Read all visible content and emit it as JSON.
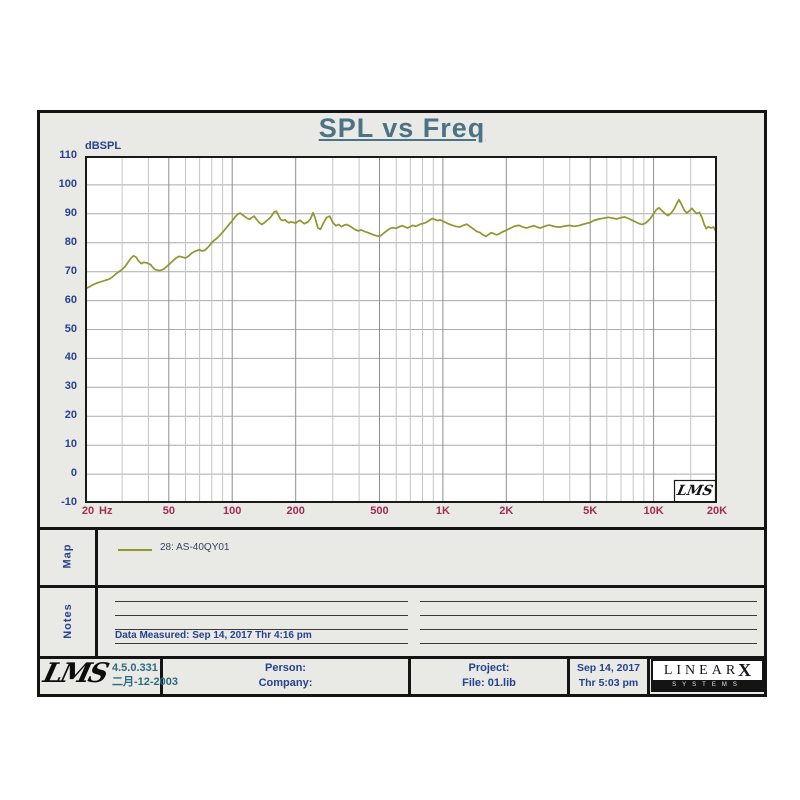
{
  "title": "SPL vs Freq",
  "plot": {
    "y_unit_label": "dBSPL",
    "x_unit_label": "Hz",
    "watermark": "LMS"
  },
  "chart_data": {
    "type": "line",
    "title": "SPL vs Freq",
    "ylabel": "dBSPL",
    "x_unit": "Hz",
    "x_scale": "log",
    "xlim": [
      20,
      20000
    ],
    "ylim": [
      -10,
      110
    ],
    "grid": true,
    "y_ticks": [
      110,
      100,
      90,
      80,
      70,
      60,
      50,
      40,
      30,
      20,
      10,
      0,
      -10
    ],
    "x_ticks": [
      {
        "f": 20,
        "label": "20"
      },
      {
        "f": 50,
        "label": "50"
      },
      {
        "f": 100,
        "label": "100"
      },
      {
        "f": 200,
        "label": "200"
      },
      {
        "f": 500,
        "label": "500"
      },
      {
        "f": 1000,
        "label": "1K"
      },
      {
        "f": 2000,
        "label": "2K"
      },
      {
        "f": 5000,
        "label": "5K"
      },
      {
        "f": 10000,
        "label": "10K"
      },
      {
        "f": 20000,
        "label": "20K"
      }
    ],
    "x_minor_gridlines": [
      30,
      40,
      60,
      70,
      80,
      90,
      300,
      400,
      600,
      700,
      800,
      900,
      3000,
      4000,
      6000,
      7000,
      8000,
      9000,
      15000
    ],
    "series": [
      {
        "name": "28: AS-40QY01",
        "color": "#8f962e",
        "points": [
          [
            20,
            64
          ],
          [
            21,
            64.8
          ],
          [
            22,
            65.6
          ],
          [
            23,
            66.2
          ],
          [
            24,
            66.6
          ],
          [
            25,
            67
          ],
          [
            26,
            67.4
          ],
          [
            27,
            68.2
          ],
          [
            28,
            69.2
          ],
          [
            29,
            70
          ],
          [
            30,
            70.8
          ],
          [
            31,
            71.8
          ],
          [
            32,
            73.2
          ],
          [
            33,
            74.6
          ],
          [
            34,
            75.5
          ],
          [
            35,
            75
          ],
          [
            36,
            73.6
          ],
          [
            37,
            72.8
          ],
          [
            38,
            73.2
          ],
          [
            39,
            73.1
          ],
          [
            40,
            72.8
          ],
          [
            41,
            72.4
          ],
          [
            42,
            71.4
          ],
          [
            43,
            70.8
          ],
          [
            44,
            70.5
          ],
          [
            45,
            70.4
          ],
          [
            46,
            70.5
          ],
          [
            47,
            70.8
          ],
          [
            48,
            71.3
          ],
          [
            50,
            72.4
          ],
          [
            52,
            73.6
          ],
          [
            54,
            74.7
          ],
          [
            56,
            75.3
          ],
          [
            58,
            75
          ],
          [
            60,
            74.7
          ],
          [
            62,
            75.4
          ],
          [
            64,
            76.3
          ],
          [
            66,
            76.9
          ],
          [
            68,
            77.3
          ],
          [
            70,
            77.6
          ],
          [
            72,
            77.1
          ],
          [
            74,
            77.4
          ],
          [
            76,
            78.1
          ],
          [
            78,
            79
          ],
          [
            80,
            80
          ],
          [
            82,
            80.8
          ],
          [
            84,
            81.4
          ],
          [
            86,
            82.1
          ],
          [
            88,
            82.9
          ],
          [
            90,
            83.6
          ],
          [
            93,
            84.9
          ],
          [
            96,
            86.1
          ],
          [
            100,
            87.6
          ],
          [
            103,
            88.9
          ],
          [
            106,
            89.8
          ],
          [
            109,
            90.3
          ],
          [
            112,
            89.6
          ],
          [
            115,
            89
          ],
          [
            118,
            88.4
          ],
          [
            121,
            88.1
          ],
          [
            124,
            88.7
          ],
          [
            127,
            89.2
          ],
          [
            130,
            88.2
          ],
          [
            134,
            87
          ],
          [
            138,
            86.3
          ],
          [
            142,
            86.9
          ],
          [
            146,
            87.7
          ],
          [
            150,
            88.3
          ],
          [
            154,
            89.4
          ],
          [
            158,
            90.6
          ],
          [
            162,
            90.9
          ],
          [
            166,
            89.4
          ],
          [
            170,
            88
          ],
          [
            174,
            87.7
          ],
          [
            178,
            88
          ],
          [
            182,
            87.3
          ],
          [
            186,
            86.9
          ],
          [
            190,
            87.2
          ],
          [
            195,
            87
          ],
          [
            200,
            86.8
          ],
          [
            205,
            87.4
          ],
          [
            210,
            87.8
          ],
          [
            215,
            87.1
          ],
          [
            220,
            86.6
          ],
          [
            228,
            87.1
          ],
          [
            235,
            88.2
          ],
          [
            242,
            90.4
          ],
          [
            248,
            88.4
          ],
          [
            255,
            85.1
          ],
          [
            262,
            84.7
          ],
          [
            270,
            86.6
          ],
          [
            280,
            88.7
          ],
          [
            290,
            89.2
          ],
          [
            300,
            87
          ],
          [
            310,
            85.9
          ],
          [
            320,
            86.3
          ],
          [
            330,
            85.6
          ],
          [
            340,
            86.1
          ],
          [
            350,
            86.3
          ],
          [
            365,
            85.6
          ],
          [
            380,
            84.7
          ],
          [
            395,
            84.1
          ],
          [
            410,
            84.4
          ],
          [
            425,
            83.9
          ],
          [
            440,
            83.5
          ],
          [
            455,
            83.1
          ],
          [
            470,
            82.7
          ],
          [
            485,
            82.4
          ],
          [
            500,
            82.2
          ],
          [
            515,
            82.9
          ],
          [
            530,
            83.6
          ],
          [
            545,
            84.3
          ],
          [
            560,
            84.9
          ],
          [
            580,
            85.2
          ],
          [
            600,
            85
          ],
          [
            620,
            85.5
          ],
          [
            640,
            85.9
          ],
          [
            660,
            85.5
          ],
          [
            680,
            85.1
          ],
          [
            700,
            85.6
          ],
          [
            720,
            86
          ],
          [
            740,
            85.7
          ],
          [
            760,
            86
          ],
          [
            780,
            86.4
          ],
          [
            800,
            86.6
          ],
          [
            830,
            87
          ],
          [
            860,
            87.7
          ],
          [
            890,
            88.4
          ],
          [
            910,
            88.1
          ],
          [
            940,
            87.7
          ],
          [
            970,
            87.9
          ],
          [
            1000,
            87.5
          ],
          [
            1030,
            87
          ],
          [
            1060,
            86.6
          ],
          [
            1100,
            86.1
          ],
          [
            1150,
            85.7
          ],
          [
            1200,
            85.4
          ],
          [
            1250,
            86
          ],
          [
            1300,
            86.4
          ],
          [
            1350,
            85.5
          ],
          [
            1400,
            84.7
          ],
          [
            1450,
            83.9
          ],
          [
            1500,
            83.5
          ],
          [
            1550,
            82.7
          ],
          [
            1600,
            82.2
          ],
          [
            1650,
            82.9
          ],
          [
            1700,
            83.5
          ],
          [
            1750,
            83.1
          ],
          [
            1800,
            82.7
          ],
          [
            1850,
            83.1
          ],
          [
            1900,
            83.6
          ],
          [
            2000,
            84.3
          ],
          [
            2100,
            85.1
          ],
          [
            2200,
            85.8
          ],
          [
            2300,
            86
          ],
          [
            2400,
            85.4
          ],
          [
            2500,
            85.1
          ],
          [
            2600,
            85.5
          ],
          [
            2700,
            85.9
          ],
          [
            2800,
            85.4
          ],
          [
            2900,
            85.1
          ],
          [
            3000,
            85.5
          ],
          [
            3100,
            85.9
          ],
          [
            3200,
            86.1
          ],
          [
            3400,
            85.6
          ],
          [
            3600,
            85.4
          ],
          [
            3800,
            85.8
          ],
          [
            4000,
            86
          ],
          [
            4200,
            85.7
          ],
          [
            4400,
            85.9
          ],
          [
            4600,
            86.3
          ],
          [
            4800,
            86.7
          ],
          [
            5000,
            87
          ],
          [
            5200,
            87.7
          ],
          [
            5500,
            88.2
          ],
          [
            5800,
            88.5
          ],
          [
            6100,
            88.8
          ],
          [
            6400,
            88.5
          ],
          [
            6700,
            88.2
          ],
          [
            7000,
            88.7
          ],
          [
            7300,
            88.9
          ],
          [
            7600,
            88.4
          ],
          [
            7900,
            87.8
          ],
          [
            8200,
            87.2
          ],
          [
            8500,
            86.7
          ],
          [
            8800,
            86.3
          ],
          [
            9100,
            86.7
          ],
          [
            9400,
            87.5
          ],
          [
            9700,
            88.6
          ],
          [
            10000,
            90
          ],
          [
            10300,
            91.4
          ],
          [
            10600,
            92.1
          ],
          [
            10900,
            91.3
          ],
          [
            11300,
            90.1
          ],
          [
            11700,
            89.4
          ],
          [
            12100,
            90.2
          ],
          [
            12500,
            91.6
          ],
          [
            12900,
            93.6
          ],
          [
            13200,
            94.9
          ],
          [
            13600,
            93.1
          ],
          [
            14000,
            91.2
          ],
          [
            14400,
            90.3
          ],
          [
            14800,
            91.1
          ],
          [
            15200,
            91.9
          ],
          [
            15600,
            90.9
          ],
          [
            16000,
            90.1
          ],
          [
            16500,
            90.5
          ],
          [
            17000,
            88.6
          ],
          [
            17400,
            86.2
          ],
          [
            17800,
            84.9
          ],
          [
            18200,
            85.6
          ],
          [
            18700,
            85.1
          ],
          [
            19300,
            85.4
          ],
          [
            20000,
            83.1
          ]
        ]
      }
    ]
  },
  "map_panel": {
    "label": "Map",
    "legend_text": "28: AS-40QY01"
  },
  "notes_panel": {
    "label": "Notes",
    "data_measured": "Data Measured: Sep 14, 2017  Thr  4:16 pm"
  },
  "footer": {
    "logo_text": "LMS",
    "version": "4.5.0.331",
    "build_date": "二月-12-2003",
    "person_label": "Person:",
    "company_label": "Company:",
    "project_label": "Project:",
    "file_label": "File: 01.lib",
    "date": "Sep 14, 2017",
    "time": "Thr  5:03 pm",
    "brand_name": "LINEAR",
    "brand_x": "X",
    "brand_systems": "SYSTEMS"
  }
}
